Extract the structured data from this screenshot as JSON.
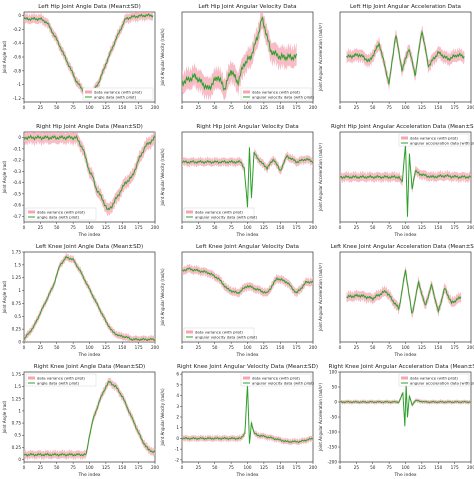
{
  "chart_data": [
    {
      "type": "line",
      "title": "Left Hip Joint Angle Data (Mean±SD)",
      "xlabel": "",
      "ylabel": "Joint Angle (rad)",
      "xlim": [
        0,
        200
      ],
      "ylim": [
        -1.25,
        0.05
      ],
      "xticks": [
        0,
        25,
        50,
        75,
        100,
        125,
        150,
        175,
        200
      ],
      "yticks": [
        0.0,
        -0.2,
        -0.4,
        -0.6,
        -0.8,
        -1.0,
        -1.2
      ],
      "legend": [
        "data variance (with pilot)",
        "angle data (with pilot)"
      ],
      "legend_loc": "bottom-right",
      "series": [
        {
          "name": "angle data (with pilot)",
          "x": [
            0,
            10,
            25,
            35,
            50,
            65,
            80,
            95,
            105,
            115,
            125,
            140,
            155,
            165,
            175,
            185,
            192,
            197
          ],
          "y": [
            -0.05,
            -0.05,
            -0.05,
            -0.1,
            -0.35,
            -0.65,
            -0.95,
            -1.15,
            -1.12,
            -0.95,
            -0.7,
            -0.35,
            -0.05,
            -0.02,
            -0.01,
            0.0,
            0.0,
            0.0
          ],
          "sd": 0.05
        }
      ]
    },
    {
      "type": "line",
      "title": "Left Hip Joint Angular Velocity Data",
      "xlabel": "",
      "ylabel": "Joint Angular Velocity (rad/s)",
      "xlim": [
        0,
        200
      ],
      "ylim": [
        -0.3,
        0.4
      ],
      "xticks": [
        0,
        25,
        50,
        75,
        100,
        125,
        150,
        175,
        200
      ],
      "yticks": [],
      "legend": [
        "data variance (with pilot)",
        "angular velocity data (with pilot)"
      ],
      "legend_loc": "bottom-right",
      "series": [
        {
          "name": "angular velocity data (with pilot)",
          "x": [
            0,
            20,
            40,
            55,
            65,
            75,
            85,
            95,
            105,
            115,
            122,
            128,
            135,
            150,
            165,
            175
          ],
          "y": [
            -0.15,
            -0.1,
            -0.2,
            -0.1,
            -0.2,
            -0.05,
            -0.15,
            0.0,
            0.05,
            0.2,
            0.35,
            0.25,
            0.1,
            0.05,
            0.05,
            0.05
          ],
          "sd": 0.06
        }
      ]
    },
    {
      "type": "line",
      "title": "Left Hip Joint Angular Acceleration Data",
      "xlabel": "",
      "ylabel": "Joint Angular Acceleration (rad/s²)",
      "xlim": [
        0,
        200
      ],
      "ylim": [
        -1.0,
        1.0
      ],
      "xticks": [
        0,
        25,
        50,
        75,
        100,
        125,
        150,
        175,
        200
      ],
      "yticks": [],
      "legend": [],
      "legend_loc": "",
      "series": [
        {
          "name": "",
          "x": [
            10,
            30,
            45,
            60,
            75,
            85,
            95,
            105,
            115,
            125,
            135,
            150,
            165,
            180,
            190
          ],
          "y": [
            0.0,
            0.05,
            -0.1,
            0.3,
            -0.6,
            0.5,
            -0.3,
            0.2,
            -0.4,
            0.6,
            -0.2,
            0.1,
            -0.05,
            0.05,
            0.0
          ],
          "sd": 0.1
        }
      ]
    },
    {
      "type": "line",
      "title": "Right Hip Joint Angle Data (Mean±SD)",
      "xlabel": "The index",
      "ylabel": "Joint Angle (rad)",
      "xlim": [
        0,
        200
      ],
      "ylim": [
        -0.75,
        0.05
      ],
      "xticks": [
        0,
        25,
        50,
        75,
        100,
        125,
        150,
        175,
        200
      ],
      "yticks": [
        0.0,
        -0.1,
        -0.2,
        -0.3,
        -0.4,
        -0.5,
        -0.6,
        -0.7
      ],
      "legend": [
        "data variance (with pilot)",
        "angle data (with pilot)"
      ],
      "legend_loc": "bottom-left",
      "series": [
        {
          "name": "angle data (with pilot)",
          "x": [
            0,
            20,
            40,
            60,
            80,
            90,
            95,
            100,
            105,
            110,
            120,
            128,
            135,
            145,
            155,
            165,
            175,
            185,
            200
          ],
          "y": [
            0.0,
            0.0,
            0.0,
            0.0,
            0.0,
            -0.1,
            -0.2,
            -0.3,
            -0.35,
            -0.45,
            -0.55,
            -0.65,
            -0.6,
            -0.5,
            -0.4,
            -0.35,
            -0.2,
            -0.08,
            0.0
          ],
          "sd": 0.04
        }
      ]
    },
    {
      "type": "line",
      "title": "Right Hip Joint Angular Velocity Data",
      "xlabel": "The index",
      "ylabel": "Joint Angular Velocity (rad/s)",
      "xlim": [
        0,
        200
      ],
      "ylim": [
        -2.0,
        1.0
      ],
      "xticks": [
        0,
        25,
        50,
        75,
        100,
        125,
        150,
        175,
        200
      ],
      "yticks": [],
      "legend": [
        "data variance (with pilot)",
        "angular velocity data (with pilot)"
      ],
      "legend_loc": "bottom-left",
      "series": [
        {
          "name": "angular velocity data (with pilot)",
          "x": [
            0,
            30,
            60,
            90,
            95,
            100,
            103,
            106,
            110,
            120,
            130,
            140,
            150,
            160,
            175,
            190,
            200
          ],
          "y": [
            0.0,
            0.0,
            0.0,
            0.0,
            -0.2,
            -1.5,
            0.5,
            -1.2,
            0.3,
            0.0,
            -0.2,
            0.1,
            -0.3,
            0.2,
            0.0,
            0.1,
            0.0
          ],
          "sd": 0.1
        }
      ]
    },
    {
      "type": "line",
      "title": "Right Hip Joint Angular Acceleration Data (Mean±SD)",
      "xlabel": "The index",
      "ylabel": "Joint Angular Acceleration (rad/s²)",
      "xlim": [
        0,
        200
      ],
      "ylim": [
        -4,
        4
      ],
      "xticks": [
        0,
        25,
        50,
        75,
        100,
        125,
        150,
        175,
        200
      ],
      "yticks": [],
      "legend": [
        "data variance (with pilot)",
        "angular acceleration data (with pilot)"
      ],
      "legend_loc": "top-right",
      "series": [
        {
          "name": "angular acceleration data (with pilot)",
          "x": [
            0,
            30,
            60,
            90,
            95,
            100,
            103,
            106,
            110,
            115,
            125,
            140,
            160,
            180,
            200
          ],
          "y": [
            0,
            0,
            0,
            0,
            -0.5,
            3.0,
            -3.5,
            2.0,
            -1.0,
            0.5,
            0.2,
            0.0,
            0.1,
            0.0,
            0.0
          ],
          "sd": 0.3
        }
      ]
    },
    {
      "type": "line",
      "title": "Left Knee Joint Angle Data (Mean±SD)",
      "xlabel": "The index",
      "ylabel": "Joint Angle (rad)",
      "xlim": [
        0,
        200
      ],
      "ylim": [
        0.0,
        1.75
      ],
      "xticks": [
        0,
        25,
        50,
        75,
        100,
        125,
        150,
        175,
        200
      ],
      "yticks": [
        0.0,
        0.25,
        0.5,
        0.75,
        1.0,
        1.25,
        1.5,
        1.75
      ],
      "legend": [],
      "legend_loc": "",
      "series": [
        {
          "name": "",
          "x": [
            0,
            15,
            30,
            45,
            55,
            65,
            75,
            85,
            95,
            105,
            115,
            125,
            135,
            145,
            155,
            165,
            175,
            190,
            200
          ],
          "y": [
            0.05,
            0.3,
            0.7,
            1.1,
            1.5,
            1.65,
            1.6,
            1.4,
            1.15,
            0.9,
            0.65,
            0.4,
            0.2,
            0.12,
            0.1,
            0.05,
            0.05,
            0.05,
            0.05
          ],
          "sd": 0.05
        }
      ]
    },
    {
      "type": "line",
      "title": "Left Knee Joint Angular Velocity Data",
      "xlabel": "The index",
      "ylabel": "Joint Angular Velocity (rad/s)",
      "xlim": [
        0,
        200
      ],
      "ylim": [
        -1.6,
        0.8
      ],
      "xticks": [
        0,
        25,
        50,
        75,
        100,
        125,
        150,
        175,
        200
      ],
      "yticks": [],
      "legend": [
        "data variance (with pilot)",
        "angular velocity data (with pilot)"
      ],
      "legend_loc": "bottom-left",
      "series": [
        {
          "name": "angular velocity data (with pilot)",
          "x": [
            0,
            10,
            25,
            40,
            55,
            70,
            85,
            100,
            115,
            130,
            145,
            160,
            175,
            190,
            200
          ],
          "y": [
            0.3,
            0.35,
            0.3,
            0.25,
            0.1,
            -0.2,
            -0.3,
            -0.1,
            -0.2,
            -0.3,
            0.1,
            0.0,
            -0.3,
            0.0,
            0.0
          ],
          "sd": 0.08
        }
      ]
    },
    {
      "type": "line",
      "title": "Left Knee Joint Angular Acceleration Data (Mean±SD)",
      "xlabel": "The index",
      "ylabel": "Joint Angular Acceleration (rad/s²)",
      "xlim": [
        0,
        200
      ],
      "ylim": [
        -1.5,
        1.5
      ],
      "xticks": [
        0,
        25,
        50,
        75,
        100,
        125,
        150,
        175,
        200
      ],
      "yticks": [],
      "legend": [],
      "legend_loc": "",
      "series": [
        {
          "name": "",
          "x": [
            10,
            30,
            50,
            70,
            90,
            100,
            110,
            120,
            130,
            140,
            150,
            160,
            170,
            185
          ],
          "y": [
            0.0,
            0.05,
            -0.05,
            0.2,
            -0.4,
            0.9,
            -0.6,
            0.5,
            -0.3,
            0.4,
            -0.5,
            0.3,
            -0.2,
            0.0
          ],
          "sd": 0.12
        }
      ]
    },
    {
      "type": "line",
      "title": "Right Knee Joint Angle Data (Mean±SD)",
      "xlabel": "The index",
      "ylabel": "Joint Angle (rad)",
      "xlim": [
        0,
        200
      ],
      "ylim": [
        -0.05,
        1.8
      ],
      "xticks": [
        0,
        25,
        50,
        75,
        100,
        125,
        150,
        175,
        200
      ],
      "yticks": [
        0.0,
        0.25,
        0.5,
        0.75,
        1.0,
        1.25,
        1.5,
        1.75
      ],
      "legend": [
        "data variance (with pilot)",
        "angle data (with pilot)"
      ],
      "legend_loc": "top-left",
      "series": [
        {
          "name": "angle data (with pilot)",
          "x": [
            0,
            25,
            50,
            75,
            90,
            95,
            100,
            105,
            115,
            125,
            130,
            140,
            150,
            160,
            170,
            180,
            190,
            200
          ],
          "y": [
            0.1,
            0.1,
            0.1,
            0.1,
            0.1,
            0.1,
            0.5,
            0.8,
            1.2,
            1.5,
            1.6,
            1.5,
            1.3,
            1.0,
            0.7,
            0.4,
            0.2,
            0.15
          ],
          "sd": 0.06
        }
      ]
    },
    {
      "type": "line",
      "title": "Right Knee Joint Angular Velocity Data (Mean±SD)",
      "xlabel": "The index",
      "ylabel": "Joint Angular Velocity (rad/s)",
      "xlim": [
        0,
        200
      ],
      "ylim": [
        -2.2,
        6.2
      ],
      "xticks": [
        0,
        25,
        50,
        75,
        100,
        125,
        150,
        175,
        200
      ],
      "yticks": [
        -2,
        -1,
        0,
        1,
        2,
        3,
        4,
        5,
        6
      ],
      "legend": [
        "data variance (with pilot)",
        "angular velocity data (with pilot)"
      ],
      "legend_loc": "top-right",
      "series": [
        {
          "name": "angular velocity data (with pilot)",
          "x": [
            0,
            30,
            60,
            90,
            96,
            100,
            103,
            106,
            110,
            115,
            125,
            140,
            160,
            180,
            200
          ],
          "y": [
            0,
            0,
            0,
            0,
            0.5,
            5.0,
            -0.5,
            1.5,
            0.5,
            0.3,
            0.2,
            0.0,
            -0.3,
            -0.3,
            0.0
          ],
          "sd": 0.2
        }
      ]
    },
    {
      "type": "line",
      "title": "Right Knee Joint Angular Acceleration Data (Mean±SD)",
      "xlabel": "The index",
      "ylabel": "Joint Angular Acceleration (rad/s²)",
      "xlim": [
        0,
        200
      ],
      "ylim": [
        -200,
        100
      ],
      "xticks": [
        0,
        25,
        50,
        75,
        100,
        125,
        150,
        175,
        200
      ],
      "yticks": [
        -200,
        -150,
        -100,
        -50,
        0,
        50,
        100
      ],
      "legend": [
        "data variance (with pilot)",
        "angular acceleration data (with pilot)"
      ],
      "legend_loc": "top-right",
      "series": [
        {
          "name": "angular acceleration data (with pilot)",
          "x": [
            0,
            50,
            90,
            96,
            99,
            101,
            103,
            106,
            110,
            115,
            130,
            160,
            200
          ],
          "y": [
            0,
            0,
            0,
            30,
            -80,
            60,
            -50,
            20,
            -10,
            5,
            0,
            0,
            0
          ],
          "sd": 5
        }
      ]
    }
  ],
  "colors": {
    "line": "#2ca02c",
    "variance": "#f4a6b2"
  }
}
